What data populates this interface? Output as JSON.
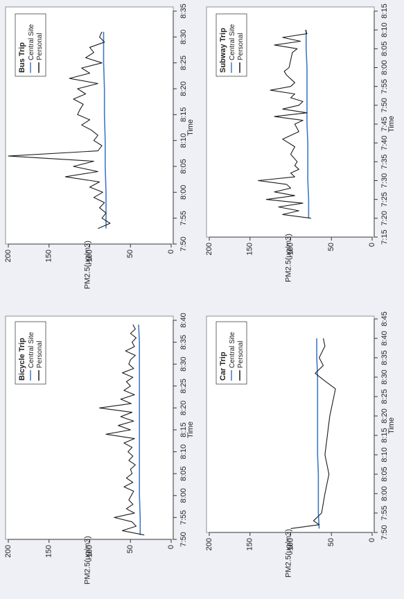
{
  "colors": {
    "personal": "#1a1a1a",
    "central": "#3d79c4",
    "axis": "#333333",
    "frame": "#777777",
    "background": "#eef0f6"
  },
  "chart_data": [
    {
      "type": "line",
      "title": "Bicycle Trip",
      "xlabel": "Time",
      "ylabel": "PM2.5(µg/m3)",
      "ylim": [
        0,
        200
      ],
      "yticks": [
        "0",
        "50",
        "100",
        "150",
        "200"
      ],
      "xlim": [
        "7:50",
        "8:40"
      ],
      "xticks": [
        "7:50",
        "7:55",
        "8:00",
        "8:05",
        "8:10",
        "8:15",
        "8:20",
        "8:25",
        "8:30",
        "8:35",
        "8:40"
      ],
      "grid": false,
      "legend": "top-left",
      "series": [
        {
          "name": "Central Site",
          "x": [
            "7:51",
            "7:55",
            "8:00",
            "8:05",
            "8:10",
            "8:15",
            "8:20",
            "8:25",
            "8:30",
            "8:35",
            "8:39"
          ],
          "values": [
            38,
            38,
            39,
            39,
            39,
            39,
            39,
            39,
            39,
            39,
            40
          ]
        },
        {
          "name": "Personal",
          "x": [
            "7:51",
            "7:52",
            "7:53",
            "7:54",
            "7:55",
            "7:56",
            "7:57",
            "7:58",
            "7:59",
            "8:00",
            "8:01",
            "8:02",
            "8:03",
            "8:04",
            "8:05",
            "8:06",
            "8:07",
            "8:08",
            "8:09",
            "8:10",
            "8:11",
            "8:12",
            "8:13",
            "8:14",
            "8:15",
            "8:16",
            "8:17",
            "8:18",
            "8:19",
            "8:20",
            "8:21",
            "8:22",
            "8:23",
            "8:24",
            "8:25",
            "8:26",
            "8:27",
            "8:28",
            "8:29",
            "8:30",
            "8:31",
            "8:32",
            "8:33",
            "8:34",
            "8:35",
            "8:36",
            "8:37",
            "8:38",
            "8:39"
          ],
          "values": [
            33,
            60,
            43,
            48,
            70,
            45,
            55,
            47,
            52,
            49,
            46,
            58,
            47,
            55,
            48,
            50,
            44,
            52,
            47,
            53,
            48,
            58,
            45,
            80,
            50,
            65,
            46,
            62,
            48,
            88,
            49,
            62,
            45,
            58,
            50,
            55,
            47,
            60,
            46,
            52,
            50,
            44,
            56,
            45,
            48,
            43,
            50,
            44,
            47
          ]
        }
      ]
    },
    {
      "type": "line",
      "title": "Bus Trip",
      "xlabel": "Time",
      "ylabel": "PM2.5(µg/m3)",
      "ylim": [
        0,
        200
      ],
      "yticks": [
        "0",
        "50",
        "100",
        "150",
        "200"
      ],
      "xlim": [
        "7:50",
        "8:35"
      ],
      "xticks": [
        "7:50",
        "7:55",
        "8:00",
        "8:05",
        "8:10",
        "8:15",
        "8:20",
        "8:25",
        "8:30",
        "8:35"
      ],
      "grid": false,
      "legend": "top-left",
      "series": [
        {
          "name": "Central Site",
          "x": [
            "7:53",
            "7:55",
            "8:00",
            "8:05",
            "8:10",
            "8:15",
            "8:20",
            "8:25",
            "8:30",
            "8:31"
          ],
          "values": [
            80,
            80,
            80,
            81,
            81,
            82,
            82,
            83,
            83,
            83
          ]
        },
        {
          "name": "Personal",
          "x": [
            "7:53",
            "7:54",
            "7:55",
            "7:56",
            "7:57",
            "7:58",
            "7:59",
            "8:00",
            "8:01",
            "8:02",
            "8:03",
            "8:04",
            "8:05",
            "8:06",
            "8:07",
            "8:08",
            "8:09",
            "8:10",
            "8:11",
            "8:12",
            "8:13",
            "8:14",
            "8:15",
            "8:16",
            "8:17",
            "8:18",
            "8:19",
            "8:20",
            "8:21",
            "8:22",
            "8:23",
            "8:24",
            "8:25",
            "8:26",
            "8:27",
            "8:28",
            "8:29",
            "8:30",
            "8:31"
          ],
          "values": [
            90,
            75,
            85,
            80,
            88,
            82,
            95,
            84,
            100,
            88,
            130,
            90,
            120,
            95,
            200,
            90,
            85,
            95,
            90,
            98,
            110,
            100,
            115,
            112,
            108,
            120,
            105,
            115,
            90,
            125,
            100,
            110,
            85,
            105,
            95,
            100,
            82,
            88,
            85
          ]
        }
      ]
    },
    {
      "type": "line",
      "title": "Car Trip",
      "xlabel": "Time",
      "ylabel": "PM2.5(µg/m3)",
      "ylim": [
        0,
        200
      ],
      "yticks": [
        "0",
        "50",
        "100",
        "150",
        "200"
      ],
      "xlim": [
        "7:50",
        "8:45"
      ],
      "xticks": [
        "7:50",
        "7:55",
        "8:00",
        "8:05",
        "8:10",
        "8:15",
        "8:20",
        "8:25",
        "8:30",
        "8:35",
        "8:40",
        "8:45"
      ],
      "grid": false,
      "legend": "top-left",
      "series": [
        {
          "name": "Central Site",
          "x": [
            "7:51",
            "7:55",
            "8:00",
            "8:05",
            "8:10",
            "8:15",
            "8:20",
            "8:25",
            "8:30",
            "8:35",
            "8:40"
          ],
          "values": [
            65,
            66,
            66,
            66,
            67,
            67,
            67,
            67,
            67,
            68,
            68
          ]
        },
        {
          "name": "Personal",
          "x": [
            "7:51",
            "7:52",
            "7:53",
            "7:55",
            "8:00",
            "8:05",
            "8:10",
            "8:15",
            "8:20",
            "8:25",
            "8:27",
            "8:29",
            "8:31",
            "8:33",
            "8:35",
            "8:38",
            "8:40"
          ],
          "values": [
            100,
            65,
            72,
            62,
            58,
            53,
            58,
            55,
            52,
            47,
            45,
            58,
            70,
            60,
            65,
            58,
            60
          ]
        }
      ]
    },
    {
      "type": "line",
      "title": "Subway Trip",
      "xlabel": "Time",
      "ylabel": "PM2.5(µg/m3)",
      "ylim": [
        0,
        200
      ],
      "yticks": [
        "0",
        "50",
        "100",
        "150",
        "200"
      ],
      "xlim": [
        "7:15",
        "8:15"
      ],
      "xticks": [
        "7:15",
        "7:20",
        "7:25",
        "7:30",
        "7:35",
        "7:40",
        "7:45",
        "7:50",
        "7:55",
        "8:00",
        "8:05",
        "8:10",
        "8:15"
      ],
      "grid": false,
      "legend": "top-left",
      "series": [
        {
          "name": "Central Site",
          "x": [
            "7:20",
            "7:25",
            "7:30",
            "7:35",
            "7:40",
            "7:45",
            "7:50",
            "7:55",
            "8:00",
            "8:05",
            "8:10"
          ],
          "values": [
            78,
            78,
            79,
            79,
            79,
            80,
            80,
            80,
            80,
            81,
            81
          ]
        },
        {
          "name": "Personal",
          "x": [
            "7:20",
            "7:21",
            "7:22",
            "7:23",
            "7:24",
            "7:25",
            "7:26",
            "7:27",
            "7:28",
            "7:29",
            "7:30",
            "7:31",
            "7:32",
            "7:33",
            "7:34",
            "7:35",
            "7:37",
            "7:39",
            "7:41",
            "7:43",
            "7:45",
            "7:46",
            "7:47",
            "7:48",
            "7:49",
            "7:50",
            "7:51",
            "7:52",
            "7:53",
            "7:54",
            "7:55",
            "7:56",
            "7:57",
            "7:58",
            "7:59",
            "8:00",
            "8:02",
            "8:04",
            "8:05",
            "8:06",
            "8:07",
            "8:08",
            "8:09",
            "8:10"
          ],
          "values": [
            75,
            110,
            90,
            115,
            85,
            130,
            95,
            120,
            100,
            105,
            140,
            95,
            100,
            90,
            95,
            92,
            100,
            95,
            110,
            90,
            95,
            85,
            120,
            80,
            110,
            90,
            85,
            100,
            95,
            125,
            100,
            95,
            100,
            105,
            108,
            102,
            100,
            98,
            92,
            120,
            88,
            110,
            80,
            82
          ]
        }
      ]
    }
  ]
}
